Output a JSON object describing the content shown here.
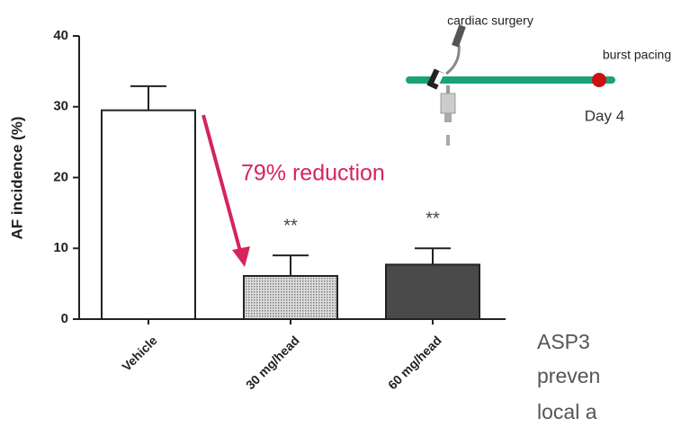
{
  "chart_data": {
    "type": "bar",
    "y_label": "AF incidence (%)",
    "categories": [
      "Vehicle",
      "30 mg/head",
      "60 mg/head"
    ],
    "values": [
      29.5,
      6.1,
      7.7
    ],
    "errors": [
      3.4,
      2.9,
      2.3
    ],
    "colors": [
      "#ffffff",
      "#bdbdbd",
      "#4a4a4a"
    ],
    "significance": [
      null,
      "**",
      "**"
    ],
    "annotation": "79% reduction",
    "annotation_color": "#d6245a",
    "ylim": [
      0,
      40
    ],
    "yticks": [
      0,
      10,
      20,
      30,
      40
    ],
    "grid": false
  },
  "inset": {
    "surgery_label": "cardiac surgery",
    "pacing_label": "burst pacing",
    "day_label": "Day 4"
  },
  "body_text": [
    "ASP3",
    "preven",
    "local a"
  ]
}
